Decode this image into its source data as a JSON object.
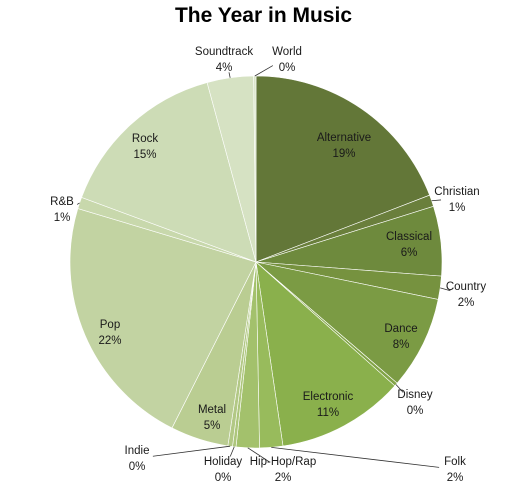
{
  "chart_data": {
    "type": "pie",
    "title": "The Year in Music",
    "slices": [
      {
        "label": "Alternative",
        "value": 19,
        "pct": "19%",
        "color": "#637738"
      },
      {
        "label": "Christian",
        "value": 1,
        "pct": "1%",
        "color": "#6a7f3c"
      },
      {
        "label": "Classical",
        "value": 6,
        "pct": "6%",
        "color": "#6e8a3d"
      },
      {
        "label": "Country",
        "value": 2,
        "pct": "2%",
        "color": "#76923f"
      },
      {
        "label": "Dance",
        "value": 8,
        "pct": "8%",
        "color": "#7b9b44"
      },
      {
        "label": "Disney",
        "value": 0.3,
        "pct": "0%",
        "color": "#82a447"
      },
      {
        "label": "Electronic",
        "value": 11,
        "pct": "11%",
        "color": "#8ab04c"
      },
      {
        "label": "Folk",
        "value": 2,
        "pct": "2%",
        "color": "#98bb5c"
      },
      {
        "label": "Hip-Hop/Rap",
        "value": 2,
        "pct": "2%",
        "color": "#a3c16c"
      },
      {
        "label": "Holiday",
        "value": 0.3,
        "pct": "0%",
        "color": "#adc67c"
      },
      {
        "label": "Indie",
        "value": 0.4,
        "pct": "0%",
        "color": "#b2c885"
      },
      {
        "label": "Metal",
        "value": 5,
        "pct": "5%",
        "color": "#bacd92"
      },
      {
        "label": "Pop",
        "value": 22,
        "pct": "22%",
        "color": "#c2d3a2"
      },
      {
        "label": "R&B",
        "value": 1,
        "pct": "1%",
        "color": "#c8d8ac"
      },
      {
        "label": "Rock",
        "value": 15,
        "pct": "15%",
        "color": "#cddcb6"
      },
      {
        "label": "Soundtrack",
        "value": 4,
        "pct": "4%",
        "color": "#d6e2c3"
      },
      {
        "label": "World",
        "value": 0.2,
        "pct": "0%",
        "color": "#dbe6ca"
      }
    ]
  }
}
